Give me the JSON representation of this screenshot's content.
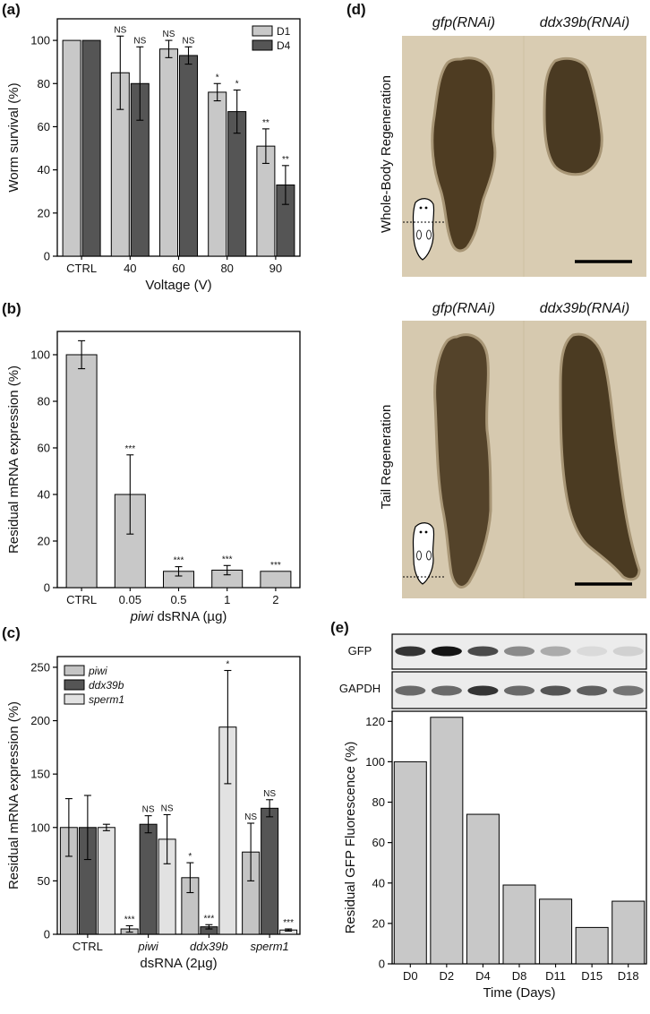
{
  "panels": {
    "a": "(a)",
    "b": "(b)",
    "c": "(c)",
    "d": "(d)",
    "e": "(e)"
  },
  "chart_data": [
    {
      "id": "a",
      "type": "bar",
      "title": "",
      "xlabel": "Voltage (V)",
      "ylabel": "Worm survival (%)",
      "ylim": [
        0,
        110
      ],
      "yticks": [
        0,
        20,
        40,
        60,
        80,
        100
      ],
      "categories": [
        "CTRL",
        "40",
        "60",
        "80",
        "90"
      ],
      "legend_position": "top-right",
      "series": [
        {
          "name": "D1",
          "color": "#c8c8c8",
          "values": [
            100,
            85,
            96,
            76,
            51
          ],
          "errors": [
            0,
            17,
            4,
            4,
            8
          ],
          "sig": [
            "",
            "NS",
            "NS",
            "*",
            "**"
          ]
        },
        {
          "name": "D4",
          "color": "#555555",
          "values": [
            100,
            80,
            93,
            67,
            33
          ],
          "errors": [
            0,
            17,
            4,
            10,
            9
          ],
          "sig": [
            "",
            "NS",
            "NS",
            "*",
            "**"
          ]
        }
      ]
    },
    {
      "id": "b",
      "type": "bar",
      "title": "",
      "xlabel_italic": "piwi",
      "xlabel": " dsRNA (µg)",
      "ylabel": "Residual mRNA expression (%)",
      "ylim": [
        0,
        110
      ],
      "yticks": [
        0,
        20,
        40,
        60,
        80,
        100
      ],
      "categories": [
        "CTRL",
        "0.05",
        "0.5",
        "1",
        "2"
      ],
      "series": [
        {
          "name": "",
          "color": "#c8c8c8",
          "values": [
            100,
            40,
            7,
            7.5,
            7
          ],
          "errors": [
            6,
            17,
            2,
            2,
            0
          ],
          "sig": [
            "",
            "***",
            "***",
            "***",
            "***"
          ]
        }
      ]
    },
    {
      "id": "c",
      "type": "bar",
      "title": "",
      "xlabel": "dsRNA (2µg)",
      "ylabel": "Residual mRNA expression (%)",
      "ylim": [
        0,
        260
      ],
      "yticks": [
        0,
        50,
        100,
        150,
        200,
        250
      ],
      "categories": [
        "CTRL",
        "piwi",
        "ddx39b",
        "sperm1"
      ],
      "category_italic": [
        false,
        true,
        true,
        true
      ],
      "legend_position": "top-left",
      "series": [
        {
          "name": "piwi",
          "color": "#c4c4c4",
          "values": [
            100,
            5,
            53,
            77
          ],
          "errors": [
            27,
            3,
            14,
            27
          ],
          "sig": [
            "",
            "***",
            "*",
            "NS"
          ]
        },
        {
          "name": "ddx39b",
          "color": "#555555",
          "values": [
            100,
            103,
            7,
            118
          ],
          "errors": [
            30,
            8,
            2,
            8
          ],
          "sig": [
            "",
            "NS",
            "***",
            "NS"
          ]
        },
        {
          "name": "sperm1",
          "color": "#e2e2e2",
          "values": [
            100,
            89,
            194,
            4
          ],
          "errors": [
            3,
            23,
            53,
            1
          ],
          "sig": [
            "",
            "NS",
            "*",
            "***"
          ]
        }
      ]
    },
    {
      "id": "e",
      "type": "bar",
      "title": "",
      "xlabel": "Time (Days)",
      "ylabel": "Residual GFP Fluorescence (%)",
      "ylim": [
        0,
        125
      ],
      "yticks": [
        0,
        20,
        40,
        60,
        80,
        100,
        120
      ],
      "categories": [
        "D0",
        "D2",
        "D4",
        "D8",
        "D11",
        "D15",
        "D18"
      ],
      "series": [
        {
          "name": "",
          "color": "#c8c8c8",
          "values": [
            100,
            122,
            74,
            39,
            32,
            18,
            31
          ]
        }
      ]
    }
  ],
  "micrographs": {
    "col1": "gfp(RNAi)",
    "col2": "ddx39b(RNAi)",
    "row1": "Whole-Body Regeneration",
    "row2": "Tail Regeneration"
  },
  "blot": {
    "row1": "GFP",
    "row2": "GAPDH",
    "gfp_intensity": [
      0.85,
      1.0,
      0.75,
      0.45,
      0.3,
      0.08,
      0.12
    ],
    "gapdh_intensity": [
      0.6,
      0.6,
      0.85,
      0.6,
      0.7,
      0.65,
      0.55
    ]
  }
}
